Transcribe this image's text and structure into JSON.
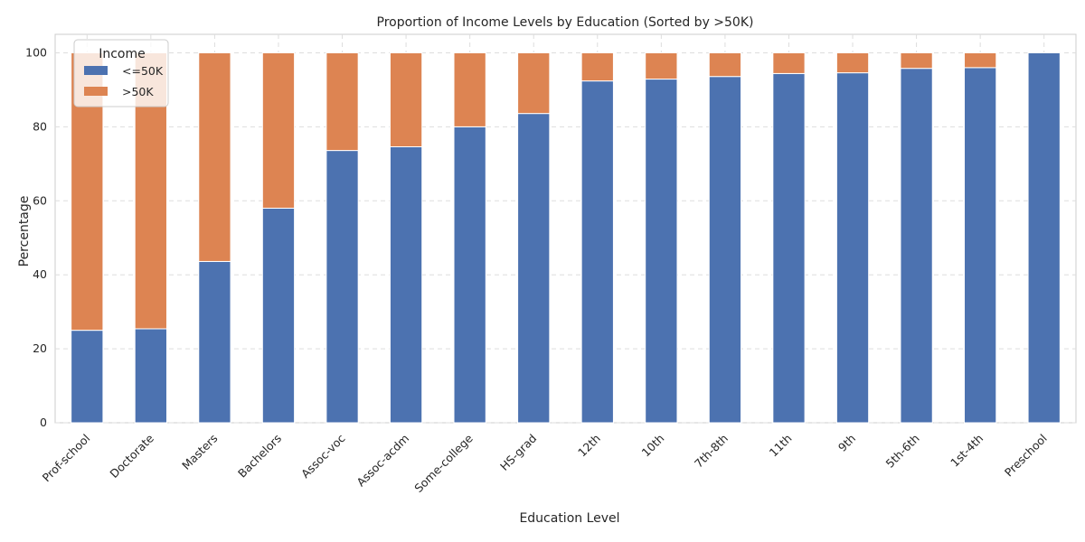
{
  "chart_data": {
    "type": "bar",
    "stacked": true,
    "title": "Proportion of Income Levels by Education (Sorted by >50K)",
    "xlabel": "Education Level",
    "ylabel": "Percentage",
    "ylim": [
      0,
      105
    ],
    "yticks": [
      0,
      20,
      40,
      60,
      80,
      100
    ],
    "grid": true,
    "legend": {
      "title": "Income",
      "placement": "top-left"
    },
    "categories": [
      "Prof-school",
      "Doctorate",
      "Masters",
      "Bachelors",
      "Assoc-voc",
      "Assoc-acdm",
      "Some-college",
      "HS-grad",
      "12th",
      "10th",
      "7th-8th",
      "11th",
      "9th",
      "5th-6th",
      "1st-4th",
      "Preschool"
    ],
    "series": [
      {
        "name": "<=50K",
        "color": "#4c72b0",
        "values": [
          25.0,
          25.4,
          43.6,
          58.0,
          73.6,
          74.6,
          80.0,
          83.6,
          92.4,
          92.9,
          93.6,
          94.4,
          94.6,
          95.8,
          96.0,
          100.0
        ]
      },
      {
        "name": ">50K",
        "color": "#dd8452",
        "values": [
          75.0,
          74.6,
          56.4,
          42.0,
          26.4,
          25.4,
          20.0,
          16.4,
          7.6,
          7.1,
          6.4,
          5.6,
          5.4,
          4.2,
          4.0,
          0.0
        ]
      }
    ]
  }
}
